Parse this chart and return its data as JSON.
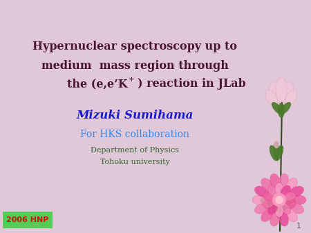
{
  "bg_color": "#e0c8d8",
  "title_line1": "Hypernuclear spectroscopy up to",
  "title_line2": "medium  mass region through",
  "title_line3_a": "the (e,e’K",
  "title_line3_sup": "+",
  "title_line3_b": ") reaction in JLab",
  "title_color": "#4a1535",
  "author": "Mizuki Sumihama",
  "author_color": "#1a1acc",
  "collab": "For HKS collaboration",
  "collab_color": "#3388ee",
  "dept": "Department of Physics",
  "dept_color": "#336633",
  "univ": "Tohoku university",
  "univ_color": "#336633",
  "badge_text": "2006 HNP",
  "badge_bg": "#55cc55",
  "badge_fg": "#cc1111",
  "slide_num": "1",
  "slide_num_color": "#666666",
  "title_fontsize": 11.5,
  "author_fontsize": 12,
  "collab_fontsize": 10,
  "small_fontsize": 8
}
